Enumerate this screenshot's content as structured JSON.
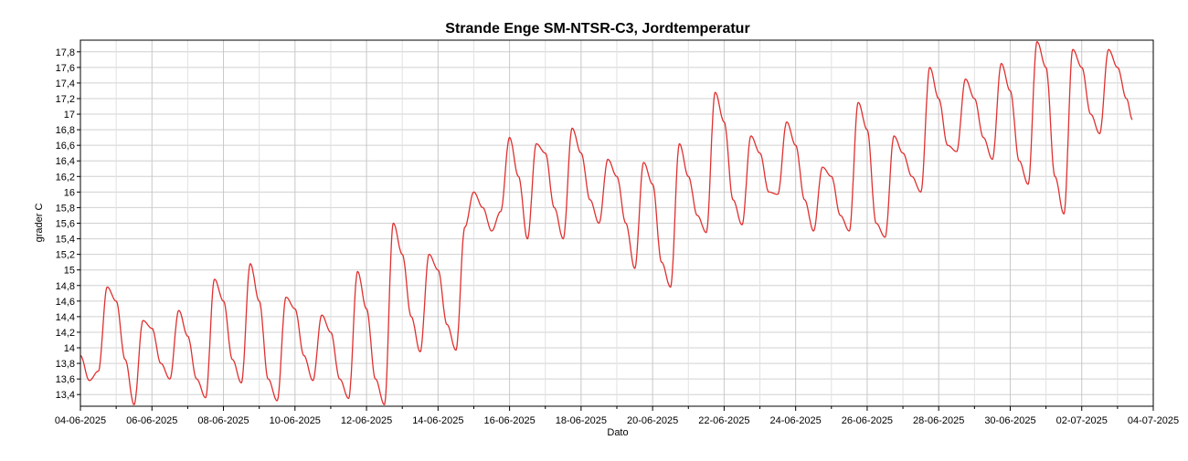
{
  "chart_data": {
    "type": "line",
    "title": "Strande Enge SM-NTSR-C3, Jordtemperatur",
    "xlabel": "Dato",
    "ylabel": "grader C",
    "x_range": [
      "2025-06-04T00:00",
      "2025-07-04T00:00"
    ],
    "ylim": [
      13.25,
      17.95
    ],
    "yticks": [
      "13,4",
      "13,6",
      "13,8",
      "14",
      "14,2",
      "14,4",
      "14,6",
      "14,8",
      "15",
      "15,2",
      "15,4",
      "15,6",
      "15,8",
      "16",
      "16,2",
      "16,4",
      "16,6",
      "16,8",
      "17",
      "17,2",
      "17,4",
      "17,6",
      "17,8"
    ],
    "xticks": [
      "04-06-2025",
      "06-06-2025",
      "08-06-2025",
      "10-06-2025",
      "12-06-2025",
      "14-06-2025",
      "16-06-2025",
      "18-06-2025",
      "20-06-2025",
      "22-06-2025",
      "24-06-2025",
      "26-06-2025",
      "28-06-2025",
      "30-06-2025",
      "02-07-2025",
      "04-07-2025"
    ],
    "grid": true,
    "line_color": "#e03030",
    "series": [
      {
        "points": [
          [
            "2025-06-04T00:00",
            13.9
          ],
          [
            "2025-06-04T06:00",
            13.58
          ],
          [
            "2025-06-04T12:00",
            13.7
          ],
          [
            "2025-06-04T18:00",
            14.78
          ],
          [
            "2025-06-05T00:00",
            14.6
          ],
          [
            "2025-06-05T06:00",
            13.85
          ],
          [
            "2025-06-05T12:00",
            13.27
          ],
          [
            "2025-06-05T18:00",
            14.35
          ],
          [
            "2025-06-06T00:00",
            14.25
          ],
          [
            "2025-06-06T06:00",
            13.8
          ],
          [
            "2025-06-06T12:00",
            13.6
          ],
          [
            "2025-06-06T18:00",
            14.48
          ],
          [
            "2025-06-07T00:00",
            14.15
          ],
          [
            "2025-06-07T06:00",
            13.6
          ],
          [
            "2025-06-07T12:00",
            13.36
          ],
          [
            "2025-06-07T18:00",
            14.88
          ],
          [
            "2025-06-08T00:00",
            14.6
          ],
          [
            "2025-06-08T06:00",
            13.85
          ],
          [
            "2025-06-08T12:00",
            13.55
          ],
          [
            "2025-06-08T18:00",
            15.08
          ],
          [
            "2025-06-09T00:00",
            14.6
          ],
          [
            "2025-06-09T06:00",
            13.6
          ],
          [
            "2025-06-09T12:00",
            13.32
          ],
          [
            "2025-06-09T18:00",
            14.65
          ],
          [
            "2025-06-10T00:00",
            14.5
          ],
          [
            "2025-06-10T06:00",
            13.9
          ],
          [
            "2025-06-10T12:00",
            13.58
          ],
          [
            "2025-06-10T18:00",
            14.42
          ],
          [
            "2025-06-11T00:00",
            14.2
          ],
          [
            "2025-06-11T06:00",
            13.6
          ],
          [
            "2025-06-11T12:00",
            13.35
          ],
          [
            "2025-06-11T18:00",
            14.98
          ],
          [
            "2025-06-12T00:00",
            14.5
          ],
          [
            "2025-06-12T06:00",
            13.6
          ],
          [
            "2025-06-12T12:00",
            13.27
          ],
          [
            "2025-06-12T18:00",
            15.6
          ],
          [
            "2025-06-13T00:00",
            15.2
          ],
          [
            "2025-06-13T06:00",
            14.4
          ],
          [
            "2025-06-13T12:00",
            13.95
          ],
          [
            "2025-06-13T18:00",
            15.2
          ],
          [
            "2025-06-14T00:00",
            15.0
          ],
          [
            "2025-06-14T06:00",
            14.3
          ],
          [
            "2025-06-14T12:00",
            13.97
          ],
          [
            "2025-06-14T18:00",
            15.55
          ],
          [
            "2025-06-15T00:00",
            16.0
          ],
          [
            "2025-06-15T06:00",
            15.8
          ],
          [
            "2025-06-15T12:00",
            15.5
          ],
          [
            "2025-06-15T18:00",
            15.75
          ],
          [
            "2025-06-16T00:00",
            16.7
          ],
          [
            "2025-06-16T06:00",
            16.2
          ],
          [
            "2025-06-16T12:00",
            15.4
          ],
          [
            "2025-06-16T18:00",
            16.62
          ],
          [
            "2025-06-17T00:00",
            16.5
          ],
          [
            "2025-06-17T06:00",
            15.8
          ],
          [
            "2025-06-17T12:00",
            15.4
          ],
          [
            "2025-06-17T18:00",
            16.82
          ],
          [
            "2025-06-18T00:00",
            16.5
          ],
          [
            "2025-06-18T06:00",
            15.9
          ],
          [
            "2025-06-18T12:00",
            15.6
          ],
          [
            "2025-06-18T18:00",
            16.42
          ],
          [
            "2025-06-19T00:00",
            16.2
          ],
          [
            "2025-06-19T06:00",
            15.6
          ],
          [
            "2025-06-19T12:00",
            15.02
          ],
          [
            "2025-06-19T18:00",
            16.38
          ],
          [
            "2025-06-20T00:00",
            16.1
          ],
          [
            "2025-06-20T06:00",
            15.1
          ],
          [
            "2025-06-20T12:00",
            14.78
          ],
          [
            "2025-06-20T18:00",
            16.62
          ],
          [
            "2025-06-21T00:00",
            16.2
          ],
          [
            "2025-06-21T06:00",
            15.7
          ],
          [
            "2025-06-21T12:00",
            15.48
          ],
          [
            "2025-06-21T18:00",
            17.28
          ],
          [
            "2025-06-22T00:00",
            16.9
          ],
          [
            "2025-06-22T06:00",
            15.9
          ],
          [
            "2025-06-22T12:00",
            15.58
          ],
          [
            "2025-06-22T18:00",
            16.72
          ],
          [
            "2025-06-23T00:00",
            16.5
          ],
          [
            "2025-06-23T06:00",
            16.0
          ],
          [
            "2025-06-23T12:00",
            15.97
          ],
          [
            "2025-06-23T18:00",
            16.9
          ],
          [
            "2025-06-24T00:00",
            16.6
          ],
          [
            "2025-06-24T06:00",
            15.9
          ],
          [
            "2025-06-24T12:00",
            15.5
          ],
          [
            "2025-06-24T18:00",
            16.32
          ],
          [
            "2025-06-25T00:00",
            16.2
          ],
          [
            "2025-06-25T06:00",
            15.7
          ],
          [
            "2025-06-25T12:00",
            15.5
          ],
          [
            "2025-06-25T18:00",
            17.15
          ],
          [
            "2025-06-26T00:00",
            16.8
          ],
          [
            "2025-06-26T06:00",
            15.6
          ],
          [
            "2025-06-26T12:00",
            15.42
          ],
          [
            "2025-06-26T18:00",
            16.72
          ],
          [
            "2025-06-27T00:00",
            16.5
          ],
          [
            "2025-06-27T06:00",
            16.2
          ],
          [
            "2025-06-27T12:00",
            16.0
          ],
          [
            "2025-06-27T18:00",
            17.6
          ],
          [
            "2025-06-28T00:00",
            17.2
          ],
          [
            "2025-06-28T06:00",
            16.6
          ],
          [
            "2025-06-28T12:00",
            16.52
          ],
          [
            "2025-06-28T18:00",
            17.45
          ],
          [
            "2025-06-29T00:00",
            17.2
          ],
          [
            "2025-06-29T06:00",
            16.7
          ],
          [
            "2025-06-29T12:00",
            16.42
          ],
          [
            "2025-06-29T18:00",
            17.65
          ],
          [
            "2025-06-30T00:00",
            17.3
          ],
          [
            "2025-06-30T06:00",
            16.4
          ],
          [
            "2025-06-30T12:00",
            16.1
          ],
          [
            "2025-06-30T18:00",
            17.93
          ],
          [
            "2025-07-01T00:00",
            17.6
          ],
          [
            "2025-07-01T06:00",
            16.2
          ],
          [
            "2025-07-01T12:00",
            15.72
          ],
          [
            "2025-07-01T18:00",
            17.83
          ],
          [
            "2025-07-02T00:00",
            17.6
          ],
          [
            "2025-07-02T06:00",
            17.0
          ],
          [
            "2025-07-02T12:00",
            16.75
          ],
          [
            "2025-07-02T18:00",
            17.83
          ],
          [
            "2025-07-03T00:00",
            17.6
          ],
          [
            "2025-07-03T06:00",
            17.2
          ],
          [
            "2025-07-03T10:00",
            16.93
          ]
        ]
      }
    ]
  }
}
